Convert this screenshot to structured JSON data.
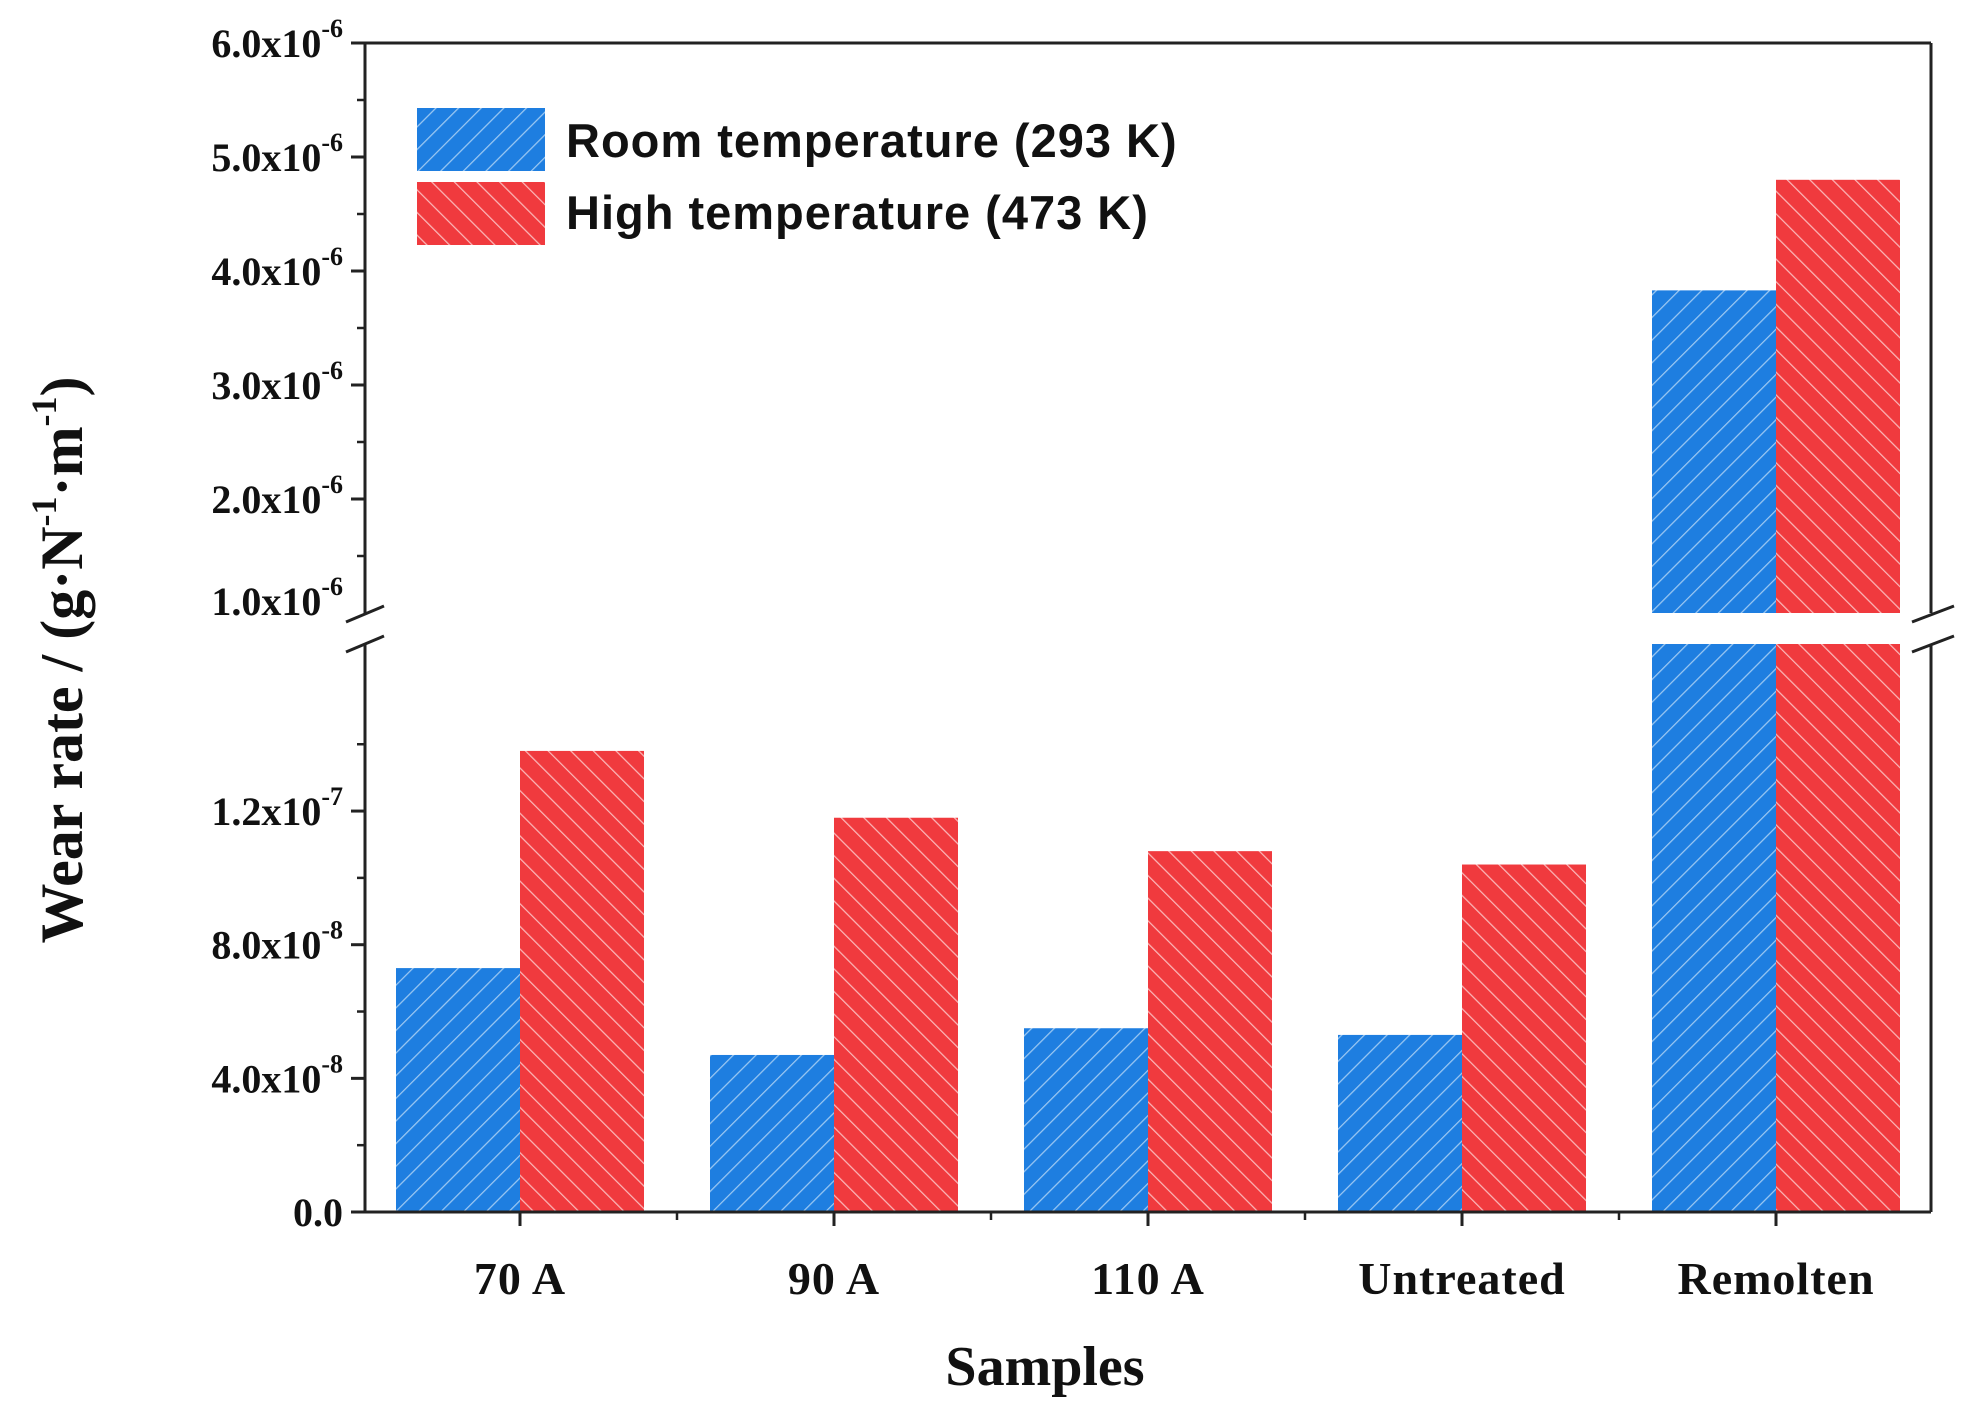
{
  "chart_data": {
    "type": "bar",
    "xlabel": "Samples",
    "ylabel_main": "Wear rate / (g·N",
    "ylabel_sup1": "-1",
    "ylabel_mid": "·m",
    "ylabel_sup2": "-1",
    "ylabel_end": ")",
    "categories": [
      "70 A",
      "90 A",
      "110 A",
      "Untreated",
      "Remolten"
    ],
    "series": [
      {
        "name": "Room temperature (293 K)",
        "color": "#1e7ee0",
        "values": [
          7.3e-08,
          4.7e-08,
          5.5e-08,
          5.3e-08,
          3.83e-06
        ]
      },
      {
        "name": "High temperature (473 K)",
        "color": "#f03a3e",
        "values": [
          1.38e-07,
          1.18e-07,
          1.08e-07,
          1.04e-07,
          4.8e-06
        ]
      }
    ],
    "axis_break": true,
    "lower_segment": {
      "ylim": [
        0,
        1.7e-07
      ],
      "ticks": [
        {
          "value": 0,
          "base": "0.0",
          "exp": ""
        },
        {
          "value": 4e-08,
          "base": "4.0x10",
          "exp": "-8"
        },
        {
          "value": 8e-08,
          "base": "8.0x10",
          "exp": "-8"
        },
        {
          "value": 1.2e-07,
          "base": "1.2x10",
          "exp": "-7"
        }
      ]
    },
    "upper_segment": {
      "ylim": [
        1e-06,
        6e-06
      ],
      "ticks": [
        {
          "value": 1e-06,
          "base": "1.0x10",
          "exp": "-6"
        },
        {
          "value": 2e-06,
          "base": "2.0x10",
          "exp": "-6"
        },
        {
          "value": 3e-06,
          "base": "3.0x10",
          "exp": "-6"
        },
        {
          "value": 4e-06,
          "base": "4.0x10",
          "exp": "-6"
        },
        {
          "value": 5e-06,
          "base": "5.0x10",
          "exp": "-6"
        },
        {
          "value": 6e-06,
          "base": "6.0x10",
          "exp": "-6"
        }
      ]
    },
    "legend_position": "top-left"
  }
}
